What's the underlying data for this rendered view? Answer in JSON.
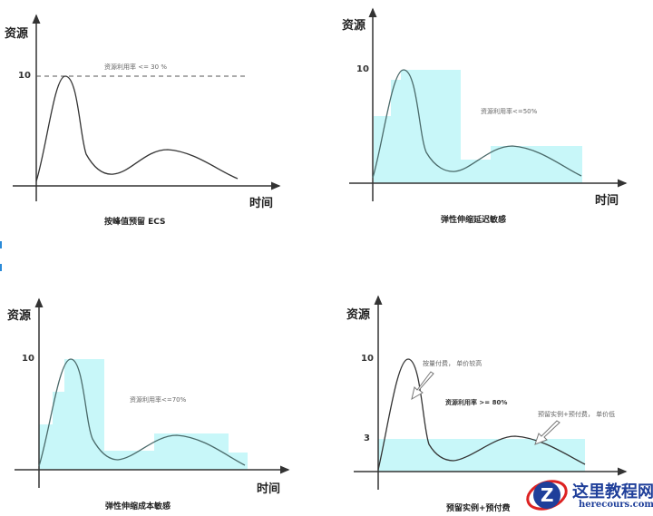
{
  "panels": [
    {
      "ylabel": "资源",
      "xlabel": "时间",
      "tick": "10",
      "note": "资源利用率 <= 30 %",
      "caption": "按峰值预留 ECS"
    },
    {
      "ylabel": "资源",
      "xlabel": "时间",
      "tick": "10",
      "note": "资源利用率<=50%",
      "caption": "弹性伸缩延迟敏感"
    },
    {
      "ylabel": "资源",
      "xlabel": "时间",
      "tick": "10",
      "note": "资源利用率<=70%",
      "caption": "弹性伸缩成本敏感"
    },
    {
      "ylabel": "资源",
      "xlabel": "时间",
      "tick": "10",
      "tick2": "3",
      "note_pay": "按量付费， 单价较高",
      "note": "资源利用率 >= 80%",
      "note_reserved": "预留实例+预付费， 单价低",
      "caption": "预留实例+预付费"
    }
  ],
  "watermark": {
    "name": "这里教程网",
    "url": "herecours.com"
  },
  "colors": {
    "fill": "#c8f7f9",
    "axis": "#333333",
    "curve": "#4a5a5a"
  }
}
